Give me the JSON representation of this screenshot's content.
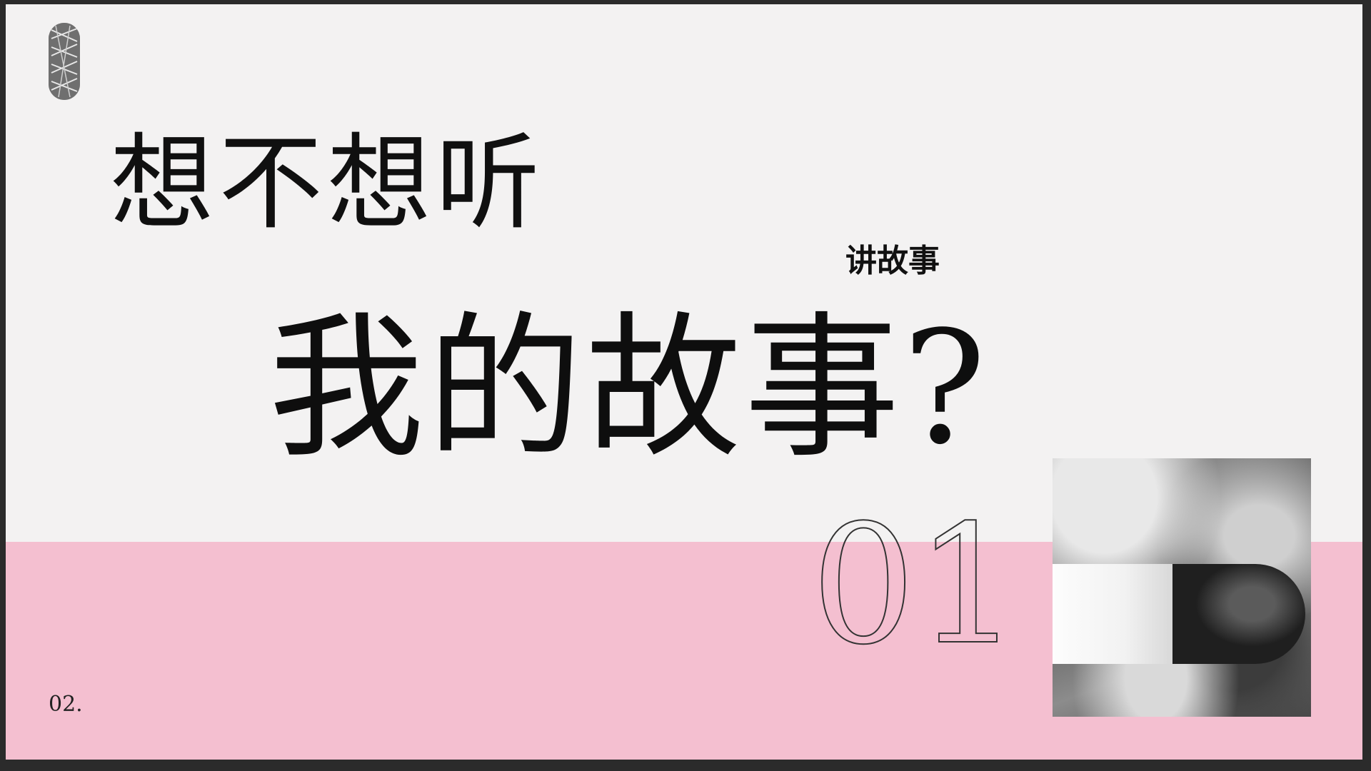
{
  "slide": {
    "headline_line1": "想不想听",
    "tag": "讲故事",
    "headline_line2": "我的故事?",
    "section_number": "01",
    "page_number": "02."
  },
  "colors": {
    "background": "#f3f2f2",
    "band": "#f4bfd0",
    "text": "#101010"
  },
  "icons": {
    "logo": "striped-pill-logo",
    "photo": "textured-gray-photo"
  }
}
